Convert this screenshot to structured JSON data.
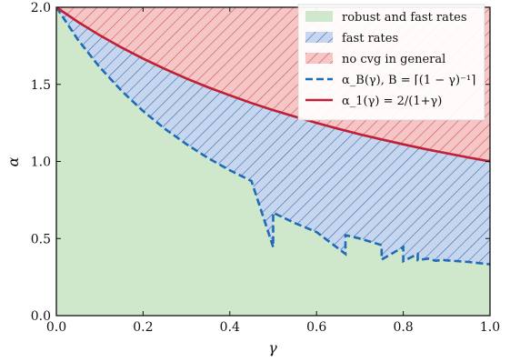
{
  "chart_data": {
    "type": "area",
    "xlabel": "γ",
    "ylabel": "α",
    "xlim": [
      0.0,
      1.0
    ],
    "ylim": [
      0.0,
      2.0
    ],
    "x_ticks": [
      "0.0",
      "0.2",
      "0.4",
      "0.6",
      "0.8",
      "1.0"
    ],
    "y_ticks": [
      "0.0",
      "0.5",
      "1.0",
      "1.5",
      "2.0"
    ],
    "grid": false,
    "legend_position": "top-right",
    "colors": {
      "robust": "#cfe8cb",
      "fast_fill": "#c6d6ee",
      "fast_hatch": "#2e62a8",
      "nocvg_fill": "#f6c5c5",
      "nocvg_hatch": "#c84a4a",
      "alphaB_line": "#1f6bb8",
      "alpha1_line": "#c01f36"
    },
    "legend": [
      {
        "label": "robust and fast rates",
        "kind": "robust"
      },
      {
        "label": "fast rates",
        "kind": "fast"
      },
      {
        "label": "no cvg in general",
        "kind": "nocvg"
      },
      {
        "label": "α_B(γ), B = ⌈(1 − γ)⁻¹⌉",
        "kind": "alphaB"
      },
      {
        "label": "α_1(γ) = 2/(1+γ)",
        "kind": "alpha1"
      }
    ],
    "series": [
      {
        "name": "α_1(γ) = 2/(1+γ)",
        "x": [
          0.0,
          0.05,
          0.1,
          0.15,
          0.2,
          0.25,
          0.3,
          0.35,
          0.4,
          0.45,
          0.5,
          0.55,
          0.6,
          0.65,
          0.7,
          0.75,
          0.8,
          0.85,
          0.9,
          0.95,
          1.0
        ],
        "y": [
          2.0,
          1.905,
          1.818,
          1.739,
          1.667,
          1.6,
          1.538,
          1.481,
          1.429,
          1.379,
          1.333,
          1.29,
          1.25,
          1.212,
          1.176,
          1.143,
          1.111,
          1.081,
          1.053,
          1.026,
          1.0
        ]
      },
      {
        "name": "α_B(γ), B = ⌈(1 − γ)⁻¹⌉",
        "x": [
          0.0,
          0.05,
          0.1,
          0.15,
          0.2,
          0.25,
          0.3,
          0.35,
          0.4,
          0.45,
          0.5,
          0.5,
          0.55,
          0.6,
          0.6667,
          0.6667,
          0.7,
          0.75,
          0.75,
          0.8,
          0.8,
          0.8333,
          0.8333,
          0.857,
          0.875,
          0.889,
          0.9,
          0.95,
          1.0
        ],
        "y": [
          2.0,
          1.789,
          1.611,
          1.459,
          1.327,
          1.212,
          1.112,
          1.022,
          0.943,
          0.873,
          0.444,
          0.667,
          0.6,
          0.542,
          0.4,
          0.522,
          0.5,
          0.457,
          0.364,
          0.444,
          0.353,
          0.4,
          0.36,
          0.37,
          0.355,
          0.362,
          0.358,
          0.348,
          0.333
        ]
      }
    ]
  }
}
